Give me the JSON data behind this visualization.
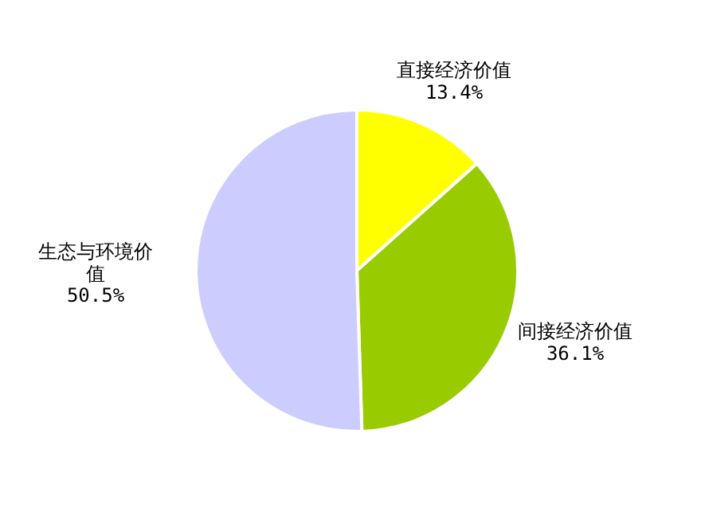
{
  "chart_data": {
    "type": "pie",
    "categories": [
      "直接经济价值",
      "间接经济价值",
      "生态与环境价值"
    ],
    "values": [
      13.4,
      36.1,
      50.5
    ],
    "colors": [
      "#ffff00",
      "#99cc00",
      "#ccccff"
    ],
    "value_labels": [
      "13.4%",
      "36.1%",
      "50.5%"
    ]
  }
}
